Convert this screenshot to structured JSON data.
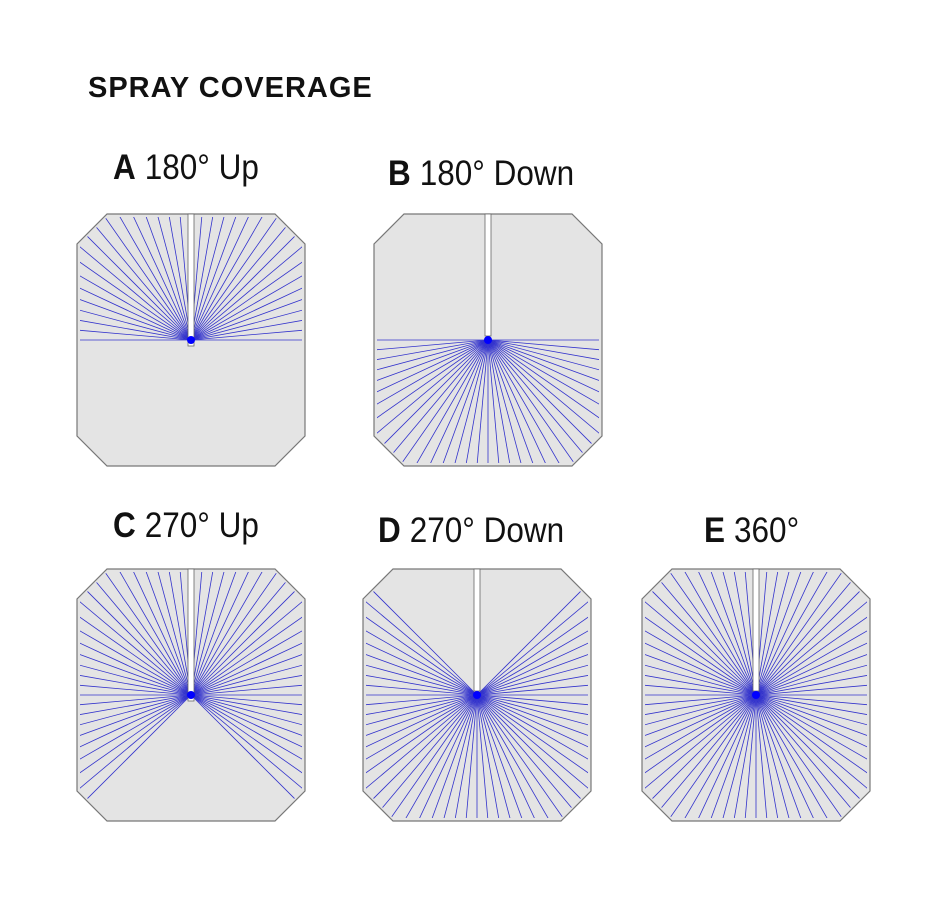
{
  "title": "SPRAY COVERAGE",
  "colors": {
    "panel_fill": "#e4e4e4",
    "panel_stroke": "#777777",
    "spray": "#3333cc",
    "nozzle": "#0000ff"
  },
  "panels": [
    {
      "letter": "A",
      "label": "180° Up",
      "coverage_degrees": 180,
      "direction": "up"
    },
    {
      "letter": "B",
      "label": "180° Down",
      "coverage_degrees": 180,
      "direction": "down"
    },
    {
      "letter": "C",
      "label": "270° Up",
      "coverage_degrees": 270,
      "direction": "up"
    },
    {
      "letter": "D",
      "label": "270° Down",
      "coverage_degrees": 270,
      "direction": "down"
    },
    {
      "letter": "E",
      "label": "360°",
      "coverage_degrees": 360,
      "direction": "all"
    }
  ]
}
